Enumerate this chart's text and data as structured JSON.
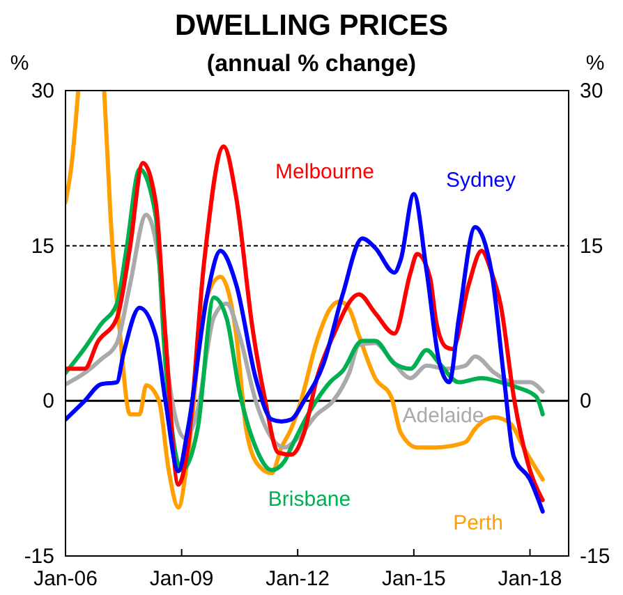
{
  "chart_data": {
    "type": "line",
    "title": "DWELLING PRICES",
    "subtitle": "(annual % change)",
    "ylabel": "%",
    "y2label": "%",
    "xlim": [
      "2006-01",
      "2019-01"
    ],
    "xticks": [
      {
        "value": "2006-01",
        "label": "Jan-06"
      },
      {
        "value": "2009-01",
        "label": "Jan-09"
      },
      {
        "value": "2012-01",
        "label": "Jan-12"
      },
      {
        "value": "2015-01",
        "label": "Jan-15"
      },
      {
        "value": "2018-01",
        "label": "Jan-18"
      }
    ],
    "ylim": [
      -15,
      30
    ],
    "yticks": [
      -15,
      0,
      15,
      30
    ],
    "y2lim": [
      -15,
      30
    ],
    "y2ticks": [
      -15,
      0,
      15,
      30
    ],
    "grid": false,
    "line_style": "solid",
    "marker": "none",
    "ref_lines": [
      {
        "axis": "y",
        "value": 15,
        "line_style": "dashed",
        "color": "#000000"
      },
      {
        "axis": "y",
        "value": 0,
        "line_style": "solid",
        "color": "#000000"
      }
    ],
    "series": [
      {
        "name": "Perth",
        "color": "#ffa000",
        "x": [
          "2006-01",
          "2006-03",
          "2006-05",
          "2006-09",
          "2007-01",
          "2007-03",
          "2007-06",
          "2007-09",
          "2007-12",
          "2008-02",
          "2008-06",
          "2008-09",
          "2008-12",
          "2009-03",
          "2009-08",
          "2010-01",
          "2010-06",
          "2010-09",
          "2011-01",
          "2011-05",
          "2011-08",
          "2011-11",
          "2012-02",
          "2012-07",
          "2012-11",
          "2013-02",
          "2013-05",
          "2013-08",
          "2014-01",
          "2014-06",
          "2014-09",
          "2015-02",
          "2015-08",
          "2016-05",
          "2016-08",
          "2017-02",
          "2017-07",
          "2017-11",
          "2018-05"
        ],
        "values": [
          19.2,
          23,
          30,
          null,
          30,
          18,
          6.3,
          -1.3,
          -1.3,
          1.5,
          0,
          -6.7,
          -10.3,
          -5.4,
          9.0,
          12.0,
          6.3,
          -2.7,
          -6.3,
          -7.0,
          -4.5,
          -2.7,
          0,
          5.8,
          8.9,
          9.6,
          8.9,
          6.3,
          2.2,
          0.4,
          -3.1,
          -4.5,
          -4.5,
          -4.0,
          -2.7,
          -1.6,
          -2.2,
          -4.5,
          -7.6
        ]
      },
      {
        "name": "Adelaide",
        "color": "#aaaaaa",
        "x": [
          "2006-01",
          "2006-07",
          "2006-12",
          "2007-05",
          "2007-09",
          "2008-02",
          "2008-06",
          "2008-09",
          "2009-02",
          "2009-06",
          "2009-11",
          "2010-03",
          "2010-07",
          "2010-12",
          "2011-06",
          "2011-09",
          "2012-01",
          "2012-07",
          "2012-12",
          "2013-05",
          "2013-08",
          "2014-01",
          "2014-06",
          "2014-12",
          "2015-05",
          "2015-11",
          "2016-05",
          "2016-08",
          "2017-02",
          "2017-08",
          "2018-01",
          "2018-05"
        ],
        "values": [
          1.6,
          2.7,
          4.0,
          5.6,
          11.2,
          18.0,
          13.4,
          2.2,
          -3.6,
          -0.9,
          8.1,
          9.4,
          6.3,
          0,
          -4.0,
          -4.5,
          -3.6,
          -1.3,
          0,
          2.7,
          5.4,
          5.6,
          4.0,
          2.2,
          3.4,
          3.1,
          3.4,
          4.3,
          2.7,
          1.8,
          1.8,
          0.9
        ]
      },
      {
        "name": "Brisbane",
        "color": "#00b050",
        "x": [
          "2006-01",
          "2006-07",
          "2006-12",
          "2007-05",
          "2007-08",
          "2007-12",
          "2008-05",
          "2008-08",
          "2009-01",
          "2009-06",
          "2009-11",
          "2010-03",
          "2010-07",
          "2010-12",
          "2011-05",
          "2011-09",
          "2011-11",
          "2012-05",
          "2012-11",
          "2013-03",
          "2013-09",
          "2014-01",
          "2014-07",
          "2014-12",
          "2015-05",
          "2015-09",
          "2016-03",
          "2016-10",
          "2017-04",
          "2017-09",
          "2018-03",
          "2018-05"
        ],
        "values": [
          2.7,
          5.1,
          7.4,
          9.4,
          14.8,
          22.4,
          17.9,
          3.6,
          -6.7,
          -2.7,
          10.0,
          8.0,
          0.9,
          -4.5,
          -6.7,
          -5.8,
          -4.5,
          -0.9,
          1.8,
          2.9,
          5.8,
          5.8,
          3.6,
          3.1,
          4.9,
          3.6,
          1.8,
          2.2,
          1.8,
          1.3,
          0.4,
          -1.3
        ]
      },
      {
        "name": "Melbourne",
        "color": "#ff0000",
        "x": [
          "2006-01",
          "2006-07",
          "2006-11",
          "2007-05",
          "2007-09",
          "2008-01",
          "2008-05",
          "2008-08",
          "2008-12",
          "2009-03",
          "2009-08",
          "2010-02",
          "2010-06",
          "2010-11",
          "2011-03",
          "2011-07",
          "2011-11",
          "2012-03",
          "2012-07",
          "2012-12",
          "2013-08",
          "2014-01",
          "2014-07",
          "2014-12",
          "2015-02",
          "2015-06",
          "2015-08",
          "2015-11",
          "2016-01",
          "2016-06",
          "2016-10",
          "2017-01",
          "2017-04",
          "2017-08",
          "2018-01",
          "2018-05"
        ],
        "values": [
          3.1,
          3.1,
          5.7,
          8.0,
          14.8,
          23,
          19.2,
          6.3,
          -8.1,
          -4.5,
          13.4,
          24.6,
          19.6,
          7.0,
          0,
          -5,
          -5.2,
          -3.1,
          2.2,
          6.3,
          10.3,
          8.5,
          6.5,
          12.4,
          14.2,
          12.0,
          7.6,
          5.2,
          5.0,
          11.2,
          14.5,
          12.5,
          9.2,
          0.4,
          -6.7,
          -9.6
        ]
      },
      {
        "name": "Sydney",
        "color": "#0000ff",
        "x": [
          "2006-01",
          "2006-07",
          "2006-12",
          "2007-05",
          "2007-07",
          "2007-12",
          "2008-05",
          "2008-08",
          "2008-12",
          "2009-03",
          "2009-09",
          "2010-01",
          "2010-06",
          "2010-12",
          "2011-05",
          "2011-08",
          "2011-11",
          "2012-03",
          "2012-09",
          "2013-03",
          "2013-09",
          "2014-01",
          "2014-07",
          "2014-09",
          "2015-01",
          "2015-05",
          "2015-09",
          "2015-12",
          "2016-03",
          "2016-08",
          "2017-01",
          "2017-05",
          "2017-08",
          "2018-01",
          "2018-05"
        ],
        "values": [
          -1.8,
          0,
          1.6,
          1.8,
          4.5,
          9,
          6.3,
          0,
          -6.8,
          -2.7,
          10.3,
          14.5,
          11.2,
          2.2,
          -1.8,
          -2.0,
          -1.8,
          0,
          3.6,
          10.3,
          15.7,
          14.8,
          12.4,
          13.7,
          20,
          12.6,
          3.6,
          1.8,
          8.0,
          16.8,
          12.6,
          2.2,
          -5.4,
          -7.6,
          -10.7
        ]
      }
    ]
  }
}
